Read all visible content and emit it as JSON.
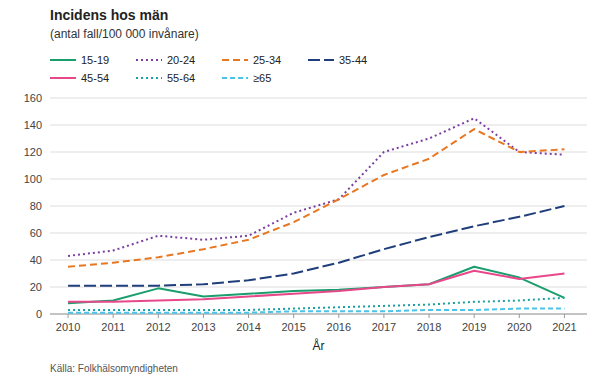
{
  "chart_data": {
    "type": "line",
    "title": "Incidens hos män",
    "subtitle": "(antal fall/100 000 invånare)",
    "x_label": "År",
    "annotations": [
      "Källa:  Folkhälsomyndigheten"
    ],
    "x": [
      2010,
      2011,
      2012,
      2013,
      2014,
      2015,
      2016,
      2017,
      2018,
      2019,
      2020,
      2021
    ],
    "xlim": [
      2009.6,
      2021.5
    ],
    "xticks": [
      2010,
      2011,
      2012,
      2013,
      2014,
      2015,
      2016,
      2017,
      2018,
      2019,
      2020,
      2021
    ],
    "ylim": [
      0,
      160
    ],
    "yticks": [
      0,
      20,
      40,
      60,
      80,
      100,
      120,
      140,
      160
    ],
    "grid": true,
    "legend": "top",
    "series": [
      {
        "name": "15-19",
        "color": "#1a9e6e",
        "line_style": "solid",
        "values": [
          8,
          10,
          19,
          13,
          15,
          17,
          18,
          20,
          22,
          35,
          27,
          12
        ]
      },
      {
        "name": "20-24",
        "color": "#7b3fa0",
        "line_style": "dotted",
        "values": [
          43,
          47,
          58,
          55,
          58,
          75,
          85,
          120,
          130,
          145,
          120,
          118
        ]
      },
      {
        "name": "25-34",
        "color": "#e87722",
        "line_style": "dashed",
        "values": [
          35,
          38,
          42,
          48,
          55,
          68,
          85,
          103,
          115,
          137,
          120,
          122
        ]
      },
      {
        "name": "35-44",
        "color": "#1f3e7a",
        "line_style": "longdash",
        "values": [
          21,
          21,
          21,
          22,
          25,
          30,
          38,
          48,
          57,
          65,
          72,
          80
        ]
      },
      {
        "name": "45-54",
        "color": "#e8488a",
        "line_style": "solid",
        "values": [
          9,
          9,
          10,
          11,
          13,
          15,
          17,
          20,
          22,
          32,
          26,
          30
        ]
      },
      {
        "name": "55-64",
        "color": "#1aa0a0",
        "line_style": "dotted",
        "values": [
          3,
          3,
          3,
          3,
          3,
          4,
          5,
          6,
          7,
          9,
          10,
          12
        ]
      },
      {
        "name": "≥65",
        "color": "#4dc3e8",
        "line_style": "shortdash",
        "values": [
          1,
          1,
          1,
          1,
          1,
          2,
          2,
          2,
          3,
          3,
          4,
          4
        ]
      }
    ]
  }
}
